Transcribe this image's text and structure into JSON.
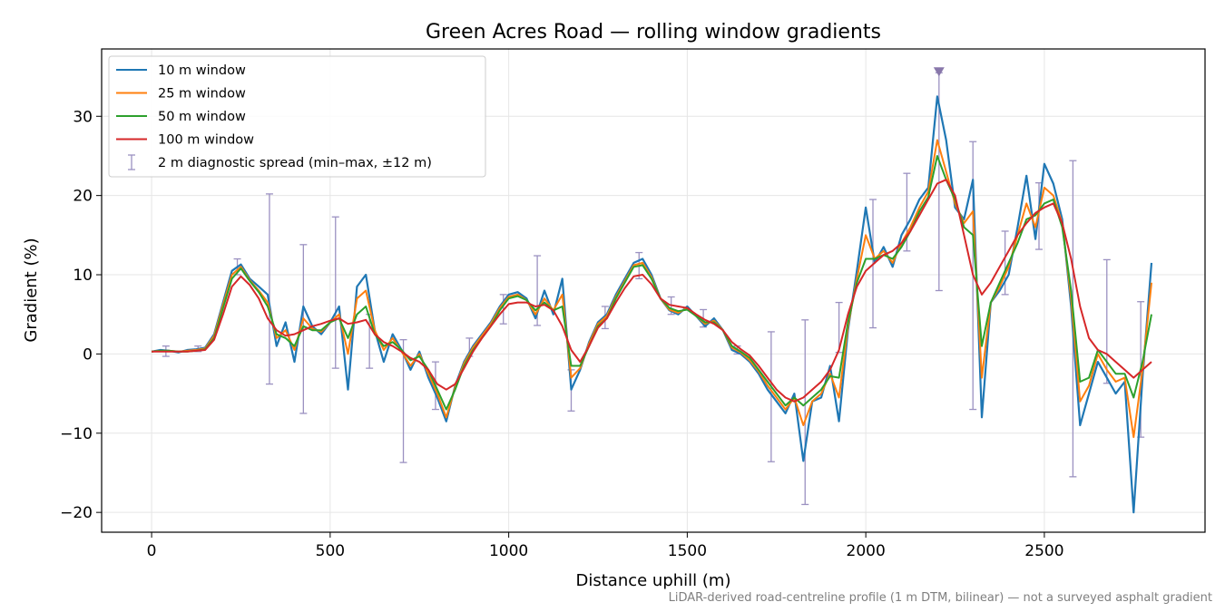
{
  "footnote": "LiDAR-derived road-centreline profile (1 m DTM, bilinear) — not a surveyed asphalt gradient",
  "chart_data": {
    "type": "line",
    "title": "Green Acres Road — rolling window gradients",
    "xlabel": "Distance uphill (m)",
    "ylabel": "Gradient (%)",
    "xlim": [
      -140,
      2950
    ],
    "ylim": [
      -22.5,
      38.5
    ],
    "xticks": [
      0,
      500,
      1000,
      1500,
      2000,
      2500
    ],
    "xtick_labels": [
      "0",
      "500",
      "1000",
      "1500",
      "2000",
      "2500"
    ],
    "yticks": [
      -20,
      -10,
      0,
      10,
      20,
      30
    ],
    "ytick_labels": [
      "−20",
      "−10",
      "0",
      "10",
      "20",
      "30"
    ],
    "grid": true,
    "legend_position": "upper left",
    "x": [
      0,
      25,
      50,
      75,
      100,
      125,
      150,
      175,
      200,
      225,
      250,
      275,
      300,
      325,
      350,
      375,
      400,
      425,
      450,
      475,
      500,
      525,
      550,
      575,
      600,
      625,
      650,
      675,
      700,
      725,
      750,
      775,
      800,
      825,
      850,
      875,
      900,
      925,
      950,
      975,
      1000,
      1025,
      1050,
      1075,
      1100,
      1125,
      1150,
      1175,
      1200,
      1225,
      1250,
      1275,
      1300,
      1325,
      1350,
      1375,
      1400,
      1425,
      1450,
      1475,
      1500,
      1525,
      1550,
      1575,
      1600,
      1625,
      1650,
      1675,
      1700,
      1725,
      1750,
      1775,
      1800,
      1825,
      1850,
      1875,
      1900,
      1925,
      1950,
      1975,
      2000,
      2025,
      2050,
      2075,
      2100,
      2125,
      2150,
      2175,
      2200,
      2225,
      2250,
      2275,
      2300,
      2325,
      2350,
      2375,
      2400,
      2425,
      2450,
      2475,
      2500,
      2525,
      2550,
      2575,
      2600,
      2625,
      2650,
      2675,
      2700,
      2725,
      2750,
      2775,
      2800
    ],
    "series": [
      {
        "name": "10 m window",
        "color": "#1f77b4",
        "values": [
          0.3,
          0.5,
          0.4,
          0.2,
          0.5,
          0.6,
          0.8,
          2.5,
          6.5,
          10.5,
          11.3,
          9.5,
          8.5,
          7.5,
          1.0,
          4.0,
          -1.0,
          6.0,
          3.5,
          2.5,
          4.0,
          6.0,
          -4.5,
          8.5,
          10.0,
          3.0,
          -1.0,
          2.5,
          0.5,
          -2.0,
          0.3,
          -3.0,
          -5.5,
          -8.5,
          -4.0,
          -1.0,
          1.0,
          2.5,
          4.0,
          6.0,
          7.5,
          7.8,
          7.0,
          4.5,
          8.0,
          5.0,
          9.5,
          -4.5,
          -2.0,
          1.5,
          4.0,
          5.0,
          7.5,
          9.5,
          11.5,
          12.0,
          10.0,
          7.0,
          5.5,
          5.0,
          6.0,
          4.8,
          3.5,
          4.5,
          3.0,
          0.5,
          0.0,
          -1.0,
          -2.5,
          -4.5,
          -6.0,
          -7.5,
          -5.0,
          -13.5,
          -6.0,
          -5.5,
          -1.5,
          -8.5,
          3.0,
          10.5,
          18.5,
          11.5,
          13.5,
          11.0,
          15.0,
          17.0,
          19.5,
          21.0,
          32.5,
          27.0,
          18.5,
          17.0,
          22.0,
          -8.0,
          6.5,
          8.0,
          10.0,
          16.0,
          22.5,
          14.5,
          24.0,
          21.5,
          17.0,
          6.0,
          -9.0,
          -5.0,
          -1.0,
          -3.0,
          -5.0,
          -3.5,
          -20.0,
          -3.0,
          11.5
        ]
      },
      {
        "name": "25 m window",
        "color": "#ff7f0e",
        "values": [
          0.3,
          0.4,
          0.4,
          0.3,
          0.4,
          0.5,
          0.7,
          2.3,
          6.2,
          10.0,
          11.0,
          9.3,
          8.0,
          6.5,
          2.0,
          3.0,
          0.5,
          4.5,
          3.2,
          2.8,
          4.0,
          5.0,
          0.0,
          7.0,
          8.0,
          3.0,
          0.5,
          2.0,
          0.3,
          -1.5,
          0.0,
          -2.5,
          -5.0,
          -8.0,
          -4.2,
          -1.2,
          0.8,
          2.3,
          3.8,
          5.8,
          7.2,
          7.5,
          6.8,
          5.0,
          7.0,
          5.5,
          7.5,
          -3.0,
          -1.8,
          1.3,
          3.8,
          4.8,
          7.2,
          9.2,
          11.2,
          11.5,
          9.7,
          7.0,
          5.6,
          5.2,
          5.8,
          4.8,
          3.8,
          4.2,
          3.0,
          0.8,
          0.2,
          -0.8,
          -2.2,
          -4.0,
          -5.5,
          -7.0,
          -5.5,
          -9.0,
          -6.0,
          -5.0,
          -2.5,
          -5.5,
          3.5,
          9.5,
          15.0,
          12.0,
          13.0,
          11.5,
          14.0,
          16.0,
          18.5,
          20.5,
          27.0,
          23.0,
          19.0,
          16.5,
          18.0,
          -3.0,
          6.5,
          8.5,
          11.0,
          15.0,
          19.0,
          16.0,
          21.0,
          20.0,
          16.5,
          7.0,
          -6.0,
          -4.0,
          0.0,
          -2.0,
          -3.5,
          -3.0,
          -10.5,
          -2.0,
          9.0
        ]
      },
      {
        "name": "50 m window",
        "color": "#2ca02c",
        "values": [
          0.3,
          0.4,
          0.4,
          0.3,
          0.3,
          0.4,
          0.6,
          2.0,
          5.8,
          9.5,
          10.8,
          9.2,
          7.8,
          6.0,
          2.5,
          2.0,
          1.0,
          3.5,
          3.0,
          3.0,
          4.0,
          4.5,
          2.0,
          5.0,
          6.0,
          2.5,
          1.0,
          1.5,
          0.5,
          -0.8,
          -0.3,
          -2.0,
          -4.5,
          -7.0,
          -4.5,
          -1.5,
          0.5,
          2.0,
          3.5,
          5.5,
          7.0,
          7.3,
          6.8,
          5.5,
          6.5,
          5.5,
          6.0,
          -1.5,
          -1.5,
          1.0,
          3.5,
          4.5,
          7.0,
          9.0,
          11.0,
          11.2,
          9.5,
          7.0,
          5.8,
          5.4,
          5.6,
          4.8,
          4.0,
          4.0,
          3.0,
          1.0,
          0.3,
          -0.5,
          -2.0,
          -3.5,
          -5.0,
          -6.5,
          -5.5,
          -6.5,
          -5.5,
          -4.5,
          -2.8,
          -3.0,
          4.0,
          9.0,
          12.0,
          12.0,
          12.5,
          12.0,
          13.5,
          15.5,
          18.0,
          19.8,
          25.0,
          22.0,
          19.5,
          16.0,
          15.0,
          1.0,
          6.5,
          9.0,
          11.5,
          14.0,
          17.0,
          17.5,
          19.0,
          19.5,
          16.0,
          8.0,
          -3.5,
          -3.0,
          0.5,
          -1.0,
          -2.5,
          -2.5,
          -5.5,
          -1.0,
          5.0
        ]
      },
      {
        "name": "100 m window",
        "color": "#d62728",
        "values": [
          0.3,
          0.3,
          0.3,
          0.3,
          0.3,
          0.4,
          0.5,
          1.8,
          5.0,
          8.5,
          9.8,
          8.7,
          7.0,
          4.5,
          3.0,
          2.3,
          2.5,
          3.0,
          3.5,
          3.8,
          4.2,
          4.5,
          3.8,
          4.0,
          4.3,
          2.5,
          1.5,
          1.0,
          0.3,
          -0.5,
          -1.0,
          -2.0,
          -3.8,
          -4.5,
          -3.8,
          -1.8,
          0.3,
          2.0,
          3.5,
          5.0,
          6.3,
          6.5,
          6.5,
          6.0,
          6.2,
          5.5,
          3.5,
          0.5,
          -1.0,
          1.0,
          3.3,
          4.5,
          6.5,
          8.3,
          9.8,
          10.0,
          8.8,
          7.0,
          6.2,
          6.0,
          5.8,
          5.0,
          4.3,
          3.8,
          3.0,
          1.5,
          0.6,
          -0.2,
          -1.5,
          -3.0,
          -4.5,
          -5.5,
          -6.0,
          -5.5,
          -4.5,
          -3.5,
          -2.0,
          0.5,
          5.0,
          8.5,
          10.5,
          11.5,
          12.5,
          13.0,
          14.0,
          15.5,
          17.5,
          19.5,
          21.5,
          22.0,
          20.0,
          15.0,
          10.0,
          7.5,
          9.0,
          11.0,
          13.0,
          15.0,
          16.5,
          17.8,
          18.5,
          19.0,
          16.5,
          12.0,
          6.0,
          2.0,
          0.5,
          0.0,
          -1.0,
          -2.0,
          -3.0,
          -2.0,
          -1.0
        ]
      }
    ],
    "error_bars": {
      "name": "2 m diagnostic spread (min–max, ±12 m)",
      "color": "#9b91c1",
      "points": [
        {
          "x": 40,
          "min": -0.3,
          "max": 1.0
        },
        {
          "x": 130,
          "min": 0.3,
          "max": 1.0
        },
        {
          "x": 240,
          "min": 10.0,
          "max": 12.0
        },
        {
          "x": 330,
          "min": -3.8,
          "max": 20.2
        },
        {
          "x": 425,
          "min": -7.5,
          "max": 13.8
        },
        {
          "x": 515,
          "min": -1.8,
          "max": 17.3
        },
        {
          "x": 610,
          "min": -1.8,
          "max": 5.0
        },
        {
          "x": 705,
          "min": -13.7,
          "max": 1.8
        },
        {
          "x": 795,
          "min": -7.0,
          "max": -1.0
        },
        {
          "x": 890,
          "min": -0.3,
          "max": 2.0
        },
        {
          "x": 985,
          "min": 3.8,
          "max": 7.5
        },
        {
          "x": 1080,
          "min": 3.6,
          "max": 12.4
        },
        {
          "x": 1175,
          "min": -7.2,
          "max": -2.0
        },
        {
          "x": 1270,
          "min": 3.2,
          "max": 6.0
        },
        {
          "x": 1365,
          "min": 9.5,
          "max": 12.8
        },
        {
          "x": 1455,
          "min": 5.0,
          "max": 7.2
        },
        {
          "x": 1545,
          "min": 3.4,
          "max": 5.6
        },
        {
          "x": 1640,
          "min": 0.0,
          "max": 1.0
        },
        {
          "x": 1735,
          "min": -13.6,
          "max": 2.8
        },
        {
          "x": 1830,
          "min": -19.0,
          "max": 4.3
        },
        {
          "x": 1925,
          "min": 0.2,
          "max": 6.5
        },
        {
          "x": 2020,
          "min": 3.3,
          "max": 19.5
        },
        {
          "x": 2115,
          "min": 13.0,
          "max": 22.8
        },
        {
          "x": 2205,
          "min": 8.0,
          "max": 35.5
        },
        {
          "x": 2300,
          "min": -7.0,
          "max": 26.8
        },
        {
          "x": 2390,
          "min": 7.5,
          "max": 15.5
        },
        {
          "x": 2485,
          "min": 13.2,
          "max": 21.6
        },
        {
          "x": 2580,
          "min": -15.5,
          "max": 24.4
        },
        {
          "x": 2675,
          "min": -3.7,
          "max": 11.9
        },
        {
          "x": 2770,
          "min": -10.5,
          "max": 6.6
        }
      ]
    }
  }
}
